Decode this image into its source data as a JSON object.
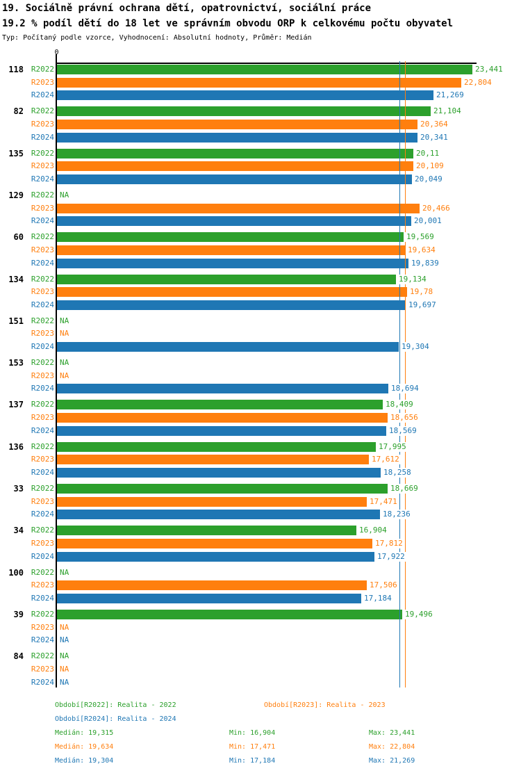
{
  "header": {
    "title": "19. Sociálně právní ochrana dětí, opatrovnictví, sociální práce",
    "subtitle": "19.2 % podíl dětí do 18 let ve správním obvodu ORP k celkovému počtu obyvatel",
    "meta": "Typ: Počítaný podle vzorce, Vyhodnocení: Absolutní hodnoty, Průměr: Medián"
  },
  "axis": {
    "zero_label": "0"
  },
  "colors": {
    "r2022": "#2ca02c",
    "r2023": "#ff7f0e",
    "r2024": "#1f77b4",
    "axis": "#000000"
  },
  "chart_data": {
    "type": "bar",
    "orientation": "horizontal",
    "x_axis": {
      "min": 0,
      "implied_max": 23.5,
      "zero_tick": "0",
      "grid": false
    },
    "series_names": [
      "R2022",
      "R2023",
      "R2024"
    ],
    "na_text": "NA",
    "categories": [
      "118",
      "82",
      "135",
      "129",
      "60",
      "134",
      "151",
      "153",
      "137",
      "136",
      "33",
      "34",
      "100",
      "39",
      "84"
    ],
    "groups": [
      {
        "category": "118",
        "cells": [
          {
            "value": 23.441,
            "label": "23,441"
          },
          {
            "value": 22.804,
            "label": "22,804"
          },
          {
            "value": 21.269,
            "label": "21,269"
          }
        ]
      },
      {
        "category": "82",
        "cells": [
          {
            "value": 21.104,
            "label": "21,104"
          },
          {
            "value": 20.364,
            "label": "20,364"
          },
          {
            "value": 20.341,
            "label": "20,341"
          }
        ]
      },
      {
        "category": "135",
        "cells": [
          {
            "value": 20.11,
            "label": "20,11"
          },
          {
            "value": 20.109,
            "label": "20,109"
          },
          {
            "value": 20.049,
            "label": "20,049"
          }
        ]
      },
      {
        "category": "129",
        "cells": [
          {
            "value": null,
            "label": "NA"
          },
          {
            "value": 20.466,
            "label": "20,466"
          },
          {
            "value": 20.001,
            "label": "20,001"
          }
        ]
      },
      {
        "category": "60",
        "cells": [
          {
            "value": 19.569,
            "label": "19,569"
          },
          {
            "value": 19.634,
            "label": "19,634"
          },
          {
            "value": 19.839,
            "label": "19,839"
          }
        ]
      },
      {
        "category": "134",
        "cells": [
          {
            "value": 19.134,
            "label": "19,134"
          },
          {
            "value": 19.78,
            "label": "19,78"
          },
          {
            "value": 19.697,
            "label": "19,697"
          }
        ]
      },
      {
        "category": "151",
        "cells": [
          {
            "value": null,
            "label": "NA"
          },
          {
            "value": null,
            "label": "NA"
          },
          {
            "value": 19.304,
            "label": "19,304"
          }
        ]
      },
      {
        "category": "153",
        "cells": [
          {
            "value": null,
            "label": "NA"
          },
          {
            "value": null,
            "label": "NA"
          },
          {
            "value": 18.694,
            "label": "18,694"
          }
        ]
      },
      {
        "category": "137",
        "cells": [
          {
            "value": 18.409,
            "label": "18,409"
          },
          {
            "value": 18.656,
            "label": "18,656"
          },
          {
            "value": 18.569,
            "label": "18,569"
          }
        ]
      },
      {
        "category": "136",
        "cells": [
          {
            "value": 17.995,
            "label": "17,995"
          },
          {
            "value": 17.612,
            "label": "17,612"
          },
          {
            "value": 18.258,
            "label": "18,258"
          }
        ]
      },
      {
        "category": "33",
        "cells": [
          {
            "value": 18.669,
            "label": "18,669"
          },
          {
            "value": 17.471,
            "label": "17,471"
          },
          {
            "value": 18.236,
            "label": "18,236"
          }
        ]
      },
      {
        "category": "34",
        "cells": [
          {
            "value": 16.904,
            "label": "16,904"
          },
          {
            "value": 17.812,
            "label": "17,812"
          },
          {
            "value": 17.922,
            "label": "17,922"
          }
        ]
      },
      {
        "category": "100",
        "cells": [
          {
            "value": null,
            "label": "NA"
          },
          {
            "value": 17.506,
            "label": "17,506"
          },
          {
            "value": 17.184,
            "label": "17,184"
          }
        ]
      },
      {
        "category": "39",
        "cells": [
          {
            "value": 19.496,
            "label": "19,496"
          },
          {
            "value": null,
            "label": "NA"
          },
          {
            "value": null,
            "label": "NA"
          }
        ]
      },
      {
        "category": "84",
        "cells": [
          {
            "value": null,
            "label": "NA"
          },
          {
            "value": null,
            "label": "NA"
          },
          {
            "value": null,
            "label": "NA"
          }
        ]
      }
    ],
    "median_lines": [
      {
        "series": "R2022",
        "value": 19.315,
        "label": "19,315"
      },
      {
        "series": "R2024",
        "value": 19.304,
        "label": "19,304"
      },
      {
        "series": "R2023",
        "value": 19.634,
        "label": "19,634"
      }
    ],
    "stats": {
      "R2022": {
        "median": "19,315",
        "min": "16,904",
        "max": "23,441"
      },
      "R2023": {
        "median": "19,634",
        "min": "17,471",
        "max": "22,804"
      },
      "R2024": {
        "median": "19,304",
        "min": "17,184",
        "max": "21,269"
      }
    }
  },
  "legend": {
    "periods": [
      {
        "label": "Období[R2022]: Realita - 2022"
      },
      {
        "label": "Období[R2023]: Realita - 2023"
      },
      {
        "label": "Období[R2024]: Realita - 2024"
      }
    ],
    "stat_rows": [
      {
        "median": "Medián: 19,315",
        "min": "Min: 16,904",
        "max": "Max: 23,441"
      },
      {
        "median": "Medián: 19,634",
        "min": "Min: 17,471",
        "max": "Max: 22,804"
      },
      {
        "median": "Medián: 19,304",
        "min": "Min: 17,184",
        "max": "Max: 21,269"
      }
    ]
  }
}
